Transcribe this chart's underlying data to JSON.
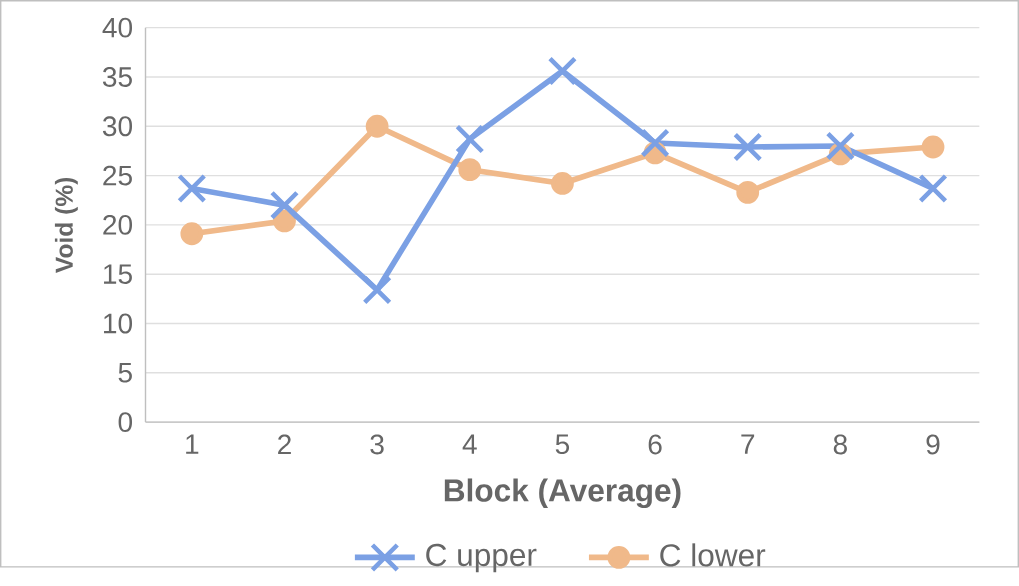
{
  "chart_data": {
    "type": "line",
    "xlabel": "Block (Average)",
    "ylabel": "Void (%)",
    "categories": [
      "1",
      "2",
      "3",
      "4",
      "5",
      "6",
      "7",
      "8",
      "9"
    ],
    "series": [
      {
        "name": "C upper",
        "color": "#7ba0e4",
        "marker": "cross",
        "values": [
          23.7,
          22.0,
          13.4,
          28.7,
          35.6,
          28.3,
          27.9,
          28.0,
          23.7
        ]
      },
      {
        "name": "C lower",
        "color": "#f0b98a",
        "marker": "circle",
        "values": [
          19.1,
          20.4,
          30.0,
          25.6,
          24.2,
          27.3,
          23.3,
          27.2,
          27.9
        ]
      }
    ],
    "ylim": [
      0,
      40
    ],
    "yticks": [
      0,
      5,
      10,
      15,
      20,
      25,
      30,
      35,
      40
    ],
    "grid": "y",
    "legend": "bottom"
  }
}
